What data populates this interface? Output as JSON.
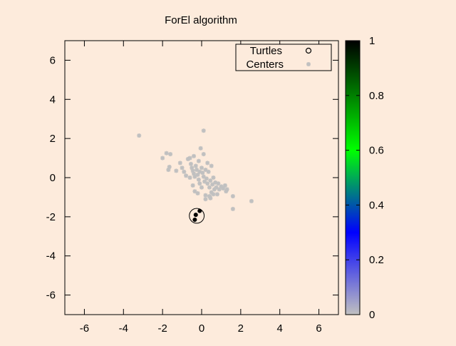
{
  "chart_data": {
    "type": "scatter",
    "title": "ForEl algorithm",
    "xlabel": "",
    "ylabel": "",
    "xlim": [
      -7,
      7
    ],
    "ylim": [
      -7,
      7
    ],
    "x_ticks": [
      -6,
      -4,
      -2,
      0,
      2,
      4,
      6
    ],
    "y_ticks": [
      -6,
      -4,
      -2,
      0,
      2,
      4,
      6
    ],
    "grid": false,
    "legend_position": "top-right",
    "colorbar": {
      "range": [
        0,
        1
      ],
      "ticks": [
        "0",
        "0.2",
        "0.4",
        "0.6",
        "0.8",
        "1"
      ],
      "stops": [
        {
          "value": 0.0,
          "color": "#c0c0c0"
        },
        {
          "value": 0.3,
          "color": "#0000ff"
        },
        {
          "value": 0.6,
          "color": "#00ff00"
        },
        {
          "value": 1.0,
          "color": "#000000"
        }
      ]
    },
    "circle": {
      "cx": -0.25,
      "cy": -1.95,
      "r": 0.38
    },
    "series": [
      {
        "name": "Turtles",
        "marker": "open-circle",
        "color": "#000000",
        "points": [
          [
            -0.1,
            -1.7
          ],
          [
            -0.35,
            -2.15
          ],
          [
            -0.3,
            -1.9
          ]
        ]
      },
      {
        "name": "Centers",
        "marker": "star",
        "color": "#c0c0c0",
        "points": [
          [
            -3.2,
            2.15
          ],
          [
            0.1,
            2.4
          ],
          [
            -2.0,
            1.0
          ],
          [
            -1.8,
            1.25
          ],
          [
            -1.6,
            1.2
          ],
          [
            -1.65,
            0.55
          ],
          [
            -1.7,
            0.4
          ],
          [
            -1.1,
            0.75
          ],
          [
            -1.0,
            0.5
          ],
          [
            -0.9,
            0.3
          ],
          [
            -0.8,
            0.1
          ],
          [
            -0.7,
            0.95
          ],
          [
            -0.6,
            1.0
          ],
          [
            -0.55,
            0.7
          ],
          [
            -0.5,
            0.5
          ],
          [
            -0.45,
            0.35
          ],
          [
            -0.4,
            0.2
          ],
          [
            -0.35,
            0.05
          ],
          [
            -0.3,
            0.6
          ],
          [
            -0.25,
            0.4
          ],
          [
            -0.2,
            0.15
          ],
          [
            -0.15,
            -0.1
          ],
          [
            -0.1,
            0.3
          ],
          [
            -0.05,
            1.5
          ],
          [
            0.1,
            1.2
          ],
          [
            0.0,
            0.5
          ],
          [
            0.05,
            0.25
          ],
          [
            0.1,
            0.05
          ],
          [
            0.15,
            -0.2
          ],
          [
            0.2,
            0.4
          ],
          [
            0.25,
            -0.05
          ],
          [
            0.3,
            -0.3
          ],
          [
            0.35,
            0.3
          ],
          [
            0.4,
            -0.5
          ],
          [
            0.45,
            -0.15
          ],
          [
            0.5,
            -0.75
          ],
          [
            0.55,
            -0.35
          ],
          [
            0.6,
            0.0
          ],
          [
            0.65,
            -0.6
          ],
          [
            0.7,
            -0.25
          ],
          [
            0.75,
            -0.5
          ],
          [
            0.8,
            -0.85
          ],
          [
            0.85,
            -0.3
          ],
          [
            0.9,
            -0.6
          ],
          [
            1.0,
            -0.45
          ],
          [
            1.1,
            -0.55
          ],
          [
            1.2,
            -0.4
          ],
          [
            1.3,
            -0.6
          ],
          [
            1.25,
            -0.7
          ],
          [
            1.6,
            -0.95
          ],
          [
            1.6,
            -1.6
          ],
          [
            2.55,
            -1.2
          ],
          [
            -0.35,
            -0.7
          ],
          [
            -0.2,
            -0.8
          ],
          [
            0.2,
            -0.9
          ],
          [
            0.4,
            -0.95
          ],
          [
            -0.45,
            -0.4
          ],
          [
            0.0,
            -0.5
          ],
          [
            -0.6,
            0.0
          ],
          [
            -1.3,
            0.35
          ],
          [
            0.3,
            0.75
          ],
          [
            0.5,
            0.6
          ],
          [
            -0.15,
            0.85
          ],
          [
            -0.4,
            1.1
          ],
          [
            0.2,
            -1.1
          ],
          [
            0.45,
            -1.05
          ],
          [
            0.6,
            -0.85
          ],
          [
            -0.1,
            -0.3
          ],
          [
            -0.3,
            -1.9
          ]
        ]
      }
    ]
  }
}
